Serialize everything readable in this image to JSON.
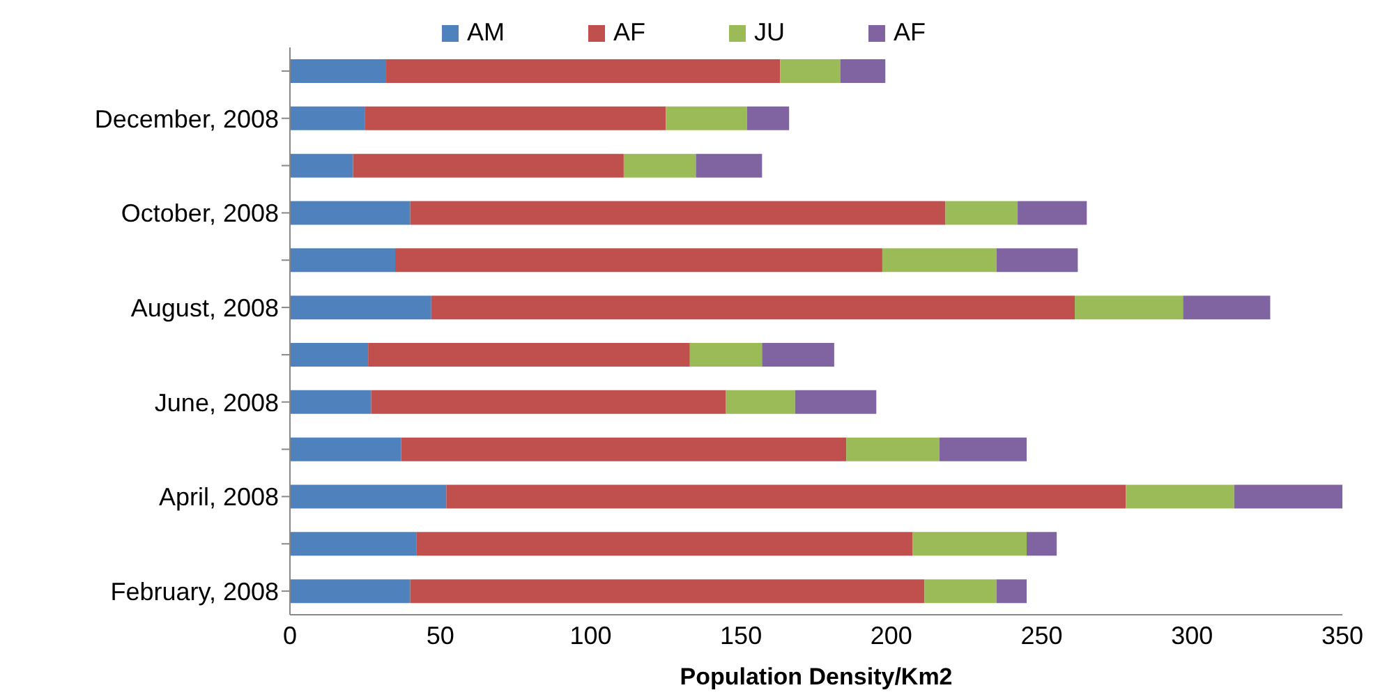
{
  "chart_data": {
    "type": "bar",
    "orientation": "horizontal",
    "stacked": true,
    "xlabel": "Population Density/Km2",
    "categories": [
      null,
      "December, 2008",
      null,
      "October, 2008",
      null,
      "August, 2008",
      null,
      "June, 2008",
      null,
      "April, 2008",
      null,
      "February, 2008"
    ],
    "series": [
      {
        "name": "AM",
        "color": "#4f81bd",
        "values": [
          32,
          25,
          21,
          40,
          35,
          47,
          26,
          27,
          37,
          52,
          42,
          40
        ]
      },
      {
        "name": "AF",
        "color": "#c0504d",
        "values": [
          131,
          100,
          90,
          178,
          162,
          214,
          107,
          118,
          148,
          226,
          165,
          171
        ]
      },
      {
        "name": "JU",
        "color": "#9bbb59",
        "values": [
          20,
          27,
          24,
          24,
          38,
          36,
          24,
          23,
          31,
          36,
          38,
          24
        ]
      },
      {
        "name": "AF",
        "color": "#8064a2",
        "values": [
          15,
          14,
          22,
          23,
          27,
          29,
          24,
          27,
          29,
          36,
          10,
          10
        ]
      }
    ],
    "xlim": [
      0,
      350
    ],
    "xticks": [
      0,
      50,
      100,
      150,
      200,
      250,
      300,
      350
    ],
    "grid": false,
    "legend": "top"
  }
}
